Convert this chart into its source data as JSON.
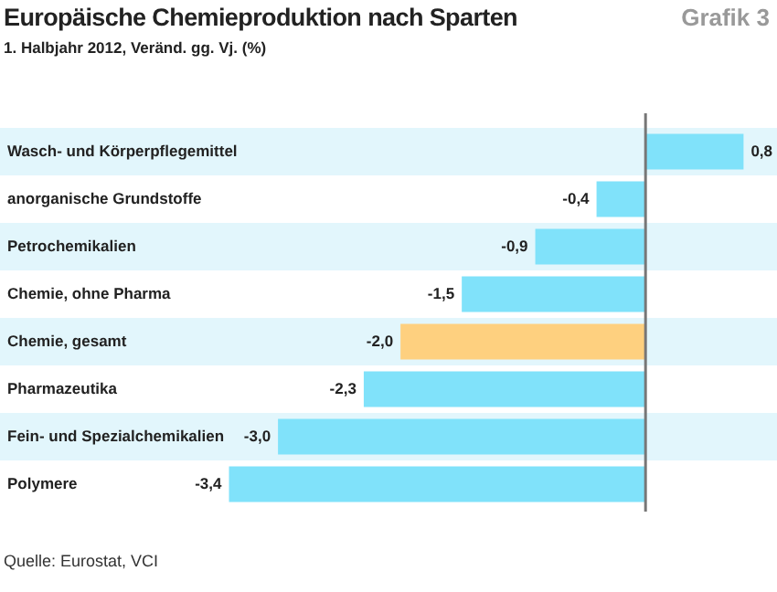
{
  "chart_data": {
    "type": "bar",
    "orientation": "horizontal",
    "title": "Europäische Chemieproduktion nach Sparten",
    "subtitle": "1. Halbjahr 2012, Veränd. gg. Vj. (%)",
    "categories": [
      "Wasch- und Körperpflegemittel",
      "anorganische Grundstoffe",
      "Petrochemikalien",
      "Chemie, ohne Pharma",
      "Chemie, gesamt",
      "Pharmazeutika",
      "Fein- und Spezialchemikalien",
      "Polymere"
    ],
    "values": [
      0.8,
      -0.4,
      -0.9,
      -1.5,
      -2.0,
      -2.3,
      -3.0,
      -3.4
    ],
    "colors": [
      "#80e2fa",
      "#80e2fa",
      "#80e2fa",
      "#80e2fa",
      "#fed07f",
      "#80e2fa",
      "#80e2fa",
      "#80e2fa"
    ],
    "value_labels": [
      "0,8",
      "-0,4",
      "-0,9",
      "-1,5",
      "-2,0",
      "-2,3",
      "-3,0",
      "-3,4"
    ],
    "legend": false,
    "annotations": [
      "Grafik 3",
      "Quelle: Eurostat, VCI"
    ]
  }
}
